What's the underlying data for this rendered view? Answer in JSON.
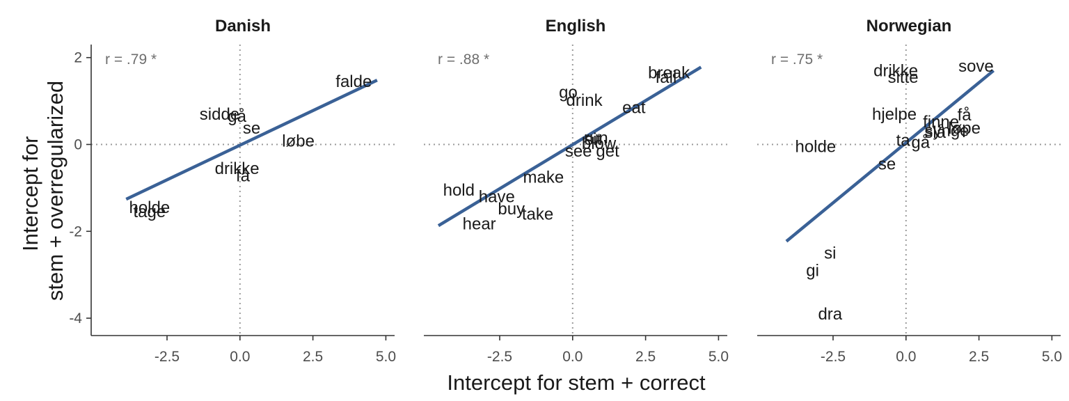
{
  "chart_data": {
    "type": "scatter",
    "xlabel": "Intercept for stem + correct",
    "ylabel_lines": [
      "Intercept for",
      "stem + overregularized"
    ],
    "xlim": [
      -5.1,
      5.3
    ],
    "ylim": [
      -4.4,
      2.3
    ],
    "x_ticks": [
      -2.5,
      0.0,
      2.5,
      5.0
    ],
    "x_tick_labels": [
      "-2.5",
      "0.0",
      "2.5",
      "5.0"
    ],
    "y_ticks": [
      2,
      0,
      -2,
      -4
    ],
    "y_tick_labels": [
      "2",
      "0",
      "-2",
      "-4"
    ],
    "grid": false,
    "reference_lines": {
      "x": 0,
      "y": 0
    },
    "colors": {
      "fit_line": "#3a6196",
      "reference_line": "#9a9a9a",
      "text": "#1a1a1a",
      "annotation": "#6e6e6e"
    },
    "panels": [
      {
        "title": "Danish",
        "annotation": "r = .79 *",
        "fit": {
          "x": [
            -3.9,
            4.7
          ],
          "y": [
            -1.26,
            1.48
          ]
        },
        "points": [
          {
            "label": "falde",
            "x": 3.9,
            "y": 1.45
          },
          {
            "label": "sidde",
            "x": -0.7,
            "y": 0.7
          },
          {
            "label": "gå",
            "x": -0.1,
            "y": 0.65
          },
          {
            "label": "se",
            "x": 0.4,
            "y": 0.38
          },
          {
            "label": "løbe",
            "x": 2.0,
            "y": 0.08
          },
          {
            "label": "drikke",
            "x": -0.1,
            "y": -0.55
          },
          {
            "label": "få",
            "x": 0.1,
            "y": -0.72
          },
          {
            "label": "holde",
            "x": -3.1,
            "y": -1.45
          },
          {
            "label": "tage",
            "x": -3.1,
            "y": -1.55
          }
        ]
      },
      {
        "title": "English",
        "annotation": "r = .88 *",
        "fit": {
          "x": [
            -4.6,
            4.4
          ],
          "y": [
            -1.87,
            1.78
          ]
        },
        "points": [
          {
            "label": "break",
            "x": 3.3,
            "y": 1.65
          },
          {
            "label": "fall",
            "x": 3.2,
            "y": 1.55
          },
          {
            "label": "go",
            "x": -0.15,
            "y": 1.2
          },
          {
            "label": "drink",
            "x": 0.4,
            "y": 1.02
          },
          {
            "label": "eat",
            "x": 2.1,
            "y": 0.85
          },
          {
            "label": "run",
            "x": 0.8,
            "y": 0.15
          },
          {
            "label": "sit",
            "x": 0.7,
            "y": 0.12
          },
          {
            "label": "blow",
            "x": 0.9,
            "y": 0.02
          },
          {
            "label": "see",
            "x": 0.2,
            "y": -0.15
          },
          {
            "label": "get",
            "x": 1.2,
            "y": -0.15
          },
          {
            "label": "make",
            "x": -1.0,
            "y": -0.75
          },
          {
            "label": "hold",
            "x": -3.9,
            "y": -1.05
          },
          {
            "label": "have",
            "x": -2.6,
            "y": -1.2
          },
          {
            "label": "buy",
            "x": -2.1,
            "y": -1.48
          },
          {
            "label": "take",
            "x": -1.2,
            "y": -1.6
          },
          {
            "label": "hear",
            "x": -3.2,
            "y": -1.83
          }
        ]
      },
      {
        "title": "Norwegian",
        "annotation": "r = .75 *",
        "fit": {
          "x": [
            -4.1,
            3.0
          ],
          "y": [
            -2.23,
            1.7
          ]
        },
        "points": [
          {
            "label": "sove",
            "x": 2.4,
            "y": 1.8
          },
          {
            "label": "drikke",
            "x": -0.35,
            "y": 1.7
          },
          {
            "label": "sitte",
            "x": -0.1,
            "y": 1.55
          },
          {
            "label": "hjelpe",
            "x": -0.4,
            "y": 0.7
          },
          {
            "label": "få",
            "x": 2.0,
            "y": 0.68
          },
          {
            "label": "finne",
            "x": 1.2,
            "y": 0.52
          },
          {
            "label": "løpe",
            "x": 2.0,
            "y": 0.38
          },
          {
            "label": "synge",
            "x": 1.4,
            "y": 0.32
          },
          {
            "label": "slå",
            "x": 1.0,
            "y": 0.28
          },
          {
            "label": "ta",
            "x": -0.1,
            "y": 0.1
          },
          {
            "label": "gå",
            "x": 0.5,
            "y": 0.05
          },
          {
            "label": "holde",
            "x": -3.1,
            "y": -0.05
          },
          {
            "label": "se",
            "x": -0.65,
            "y": -0.45
          },
          {
            "label": "si",
            "x": -2.6,
            "y": -2.5
          },
          {
            "label": "gi",
            "x": -3.2,
            "y": -2.9
          },
          {
            "label": "dra",
            "x": -2.6,
            "y": -3.9
          }
        ]
      }
    ]
  }
}
